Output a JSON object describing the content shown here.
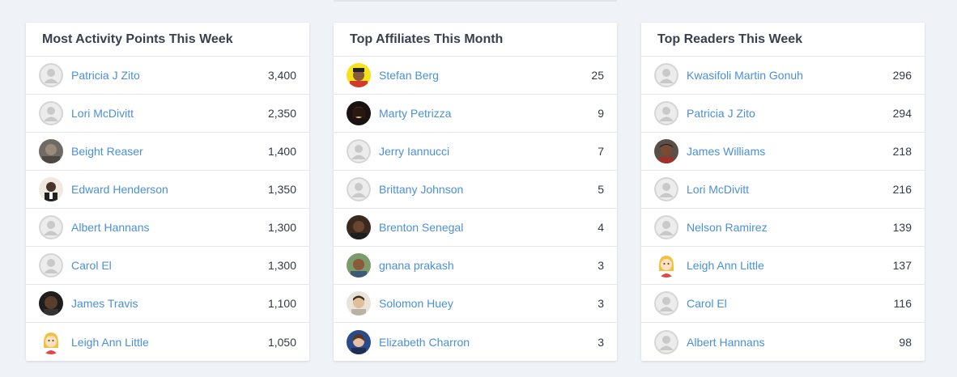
{
  "cards": [
    {
      "title": "Most Activity Points This Week",
      "rows": [
        {
          "name": "Patricia J Zito",
          "value": "3,400",
          "avatar": "default-user-icon"
        },
        {
          "name": "Lori McDivitt",
          "value": "2,350",
          "avatar": "default-user-icon"
        },
        {
          "name": "Beight Reaser",
          "value": "1,400",
          "avatar": "user-photo"
        },
        {
          "name": "Edward Henderson",
          "value": "1,350",
          "avatar": "user-photo"
        },
        {
          "name": "Albert Hannans",
          "value": "1,300",
          "avatar": "default-user-icon"
        },
        {
          "name": "Carol El",
          "value": "1,300",
          "avatar": "default-user-icon"
        },
        {
          "name": "James Travis",
          "value": "1,100",
          "avatar": "user-photo"
        },
        {
          "name": "Leigh Ann Little",
          "value": "1,050",
          "avatar": "cartoon-avatar"
        }
      ]
    },
    {
      "title": "Top Affiliates This Month",
      "rows": [
        {
          "name": "Stefan Berg",
          "value": "25",
          "avatar": "user-photo"
        },
        {
          "name": "Marty Petrizza",
          "value": "9",
          "avatar": "user-photo"
        },
        {
          "name": "Jerry Iannucci",
          "value": "7",
          "avatar": "default-user-icon"
        },
        {
          "name": "Brittany Johnson",
          "value": "5",
          "avatar": "default-user-icon"
        },
        {
          "name": "Brenton Senegal",
          "value": "4",
          "avatar": "user-photo"
        },
        {
          "name": "gnana prakash",
          "value": "3",
          "avatar": "user-photo"
        },
        {
          "name": "Solomon Huey",
          "value": "3",
          "avatar": "user-photo"
        },
        {
          "name": "Elizabeth Charron",
          "value": "3",
          "avatar": "user-photo"
        }
      ]
    },
    {
      "title": "Top Readers This Week",
      "rows": [
        {
          "name": "Kwasifoli Martin Gonuh",
          "value": "296",
          "avatar": "default-user-icon"
        },
        {
          "name": "Patricia J Zito",
          "value": "294",
          "avatar": "default-user-icon"
        },
        {
          "name": "James Williams",
          "value": "218",
          "avatar": "user-photo"
        },
        {
          "name": "Lori McDivitt",
          "value": "216",
          "avatar": "default-user-icon"
        },
        {
          "name": "Nelson Ramirez",
          "value": "139",
          "avatar": "default-user-icon"
        },
        {
          "name": "Leigh Ann Little",
          "value": "137",
          "avatar": "cartoon-avatar"
        },
        {
          "name": "Carol El",
          "value": "116",
          "avatar": "default-user-icon"
        },
        {
          "name": "Albert Hannans",
          "value": "98",
          "avatar": "default-user-icon"
        }
      ]
    }
  ],
  "colors": {
    "page_bg": "#eff3f7",
    "link": "#4a90d9",
    "title": "#3a3f4d",
    "value": "#333a44"
  }
}
